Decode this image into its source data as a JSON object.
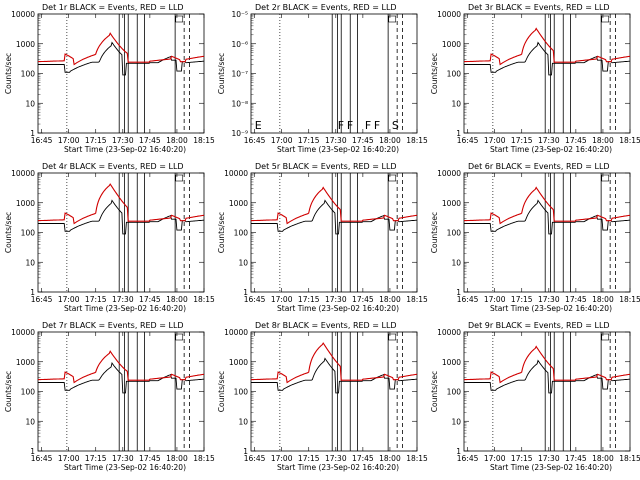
{
  "chart_data": [
    {
      "type": "line",
      "title": "Det 1r  BLACK = Events, RED = LLD",
      "xlabel": "Start Time (23-Sep-02 16:40:20)",
      "ylabel": "Counts/sec",
      "yscale": "log",
      "ylim": [
        1,
        10000
      ],
      "xlim": [
        "16:43",
        "18:15"
      ],
      "xticks": [
        "16:45",
        "17:00",
        "17:15",
        "17:30",
        "17:45",
        "18:00",
        "18:15"
      ],
      "yticks": [
        "1",
        "10",
        "100",
        "1000",
        "10000"
      ],
      "has_data": true,
      "peak_lld": 2000,
      "peak_events": 900,
      "flags": []
    },
    {
      "type": "line",
      "title": "Det 2r  BLACK = Events, RED = LLD",
      "xlabel": "Start Time (23-Sep-02 16:40:20)",
      "ylabel": "Counts/sec",
      "yscale": "log",
      "ylim": [
        1e-09,
        1e-05
      ],
      "xlim": [
        "16:43",
        "18:15"
      ],
      "xticks": [
        "16:45",
        "17:00",
        "17:15",
        "17:30",
        "17:45",
        "18:00",
        "18:15"
      ],
      "yticks": [
        "10⁻⁹",
        "10⁻⁸",
        "10⁻⁷",
        "10⁻⁶",
        "10⁻⁵"
      ],
      "has_data": false,
      "peak_lld": 0,
      "peak_events": 0,
      "flags": [
        "E",
        "F",
        "F",
        "F",
        "F",
        "S"
      ]
    },
    {
      "type": "line",
      "title": "Det 3r  BLACK = Events, RED = LLD",
      "xlabel": "Start Time (23-Sep-02 16:40:20)",
      "ylabel": "Counts/sec",
      "yscale": "log",
      "ylim": [
        1,
        10000
      ],
      "xlim": [
        "16:43",
        "18:15"
      ],
      "xticks": [
        "16:45",
        "17:00",
        "17:15",
        "17:30",
        "17:45",
        "18:00",
        "18:15"
      ],
      "yticks": [
        "1",
        "10",
        "100",
        "1000",
        "10000"
      ],
      "has_data": true,
      "peak_lld": 3000,
      "peak_events": 900,
      "flags": []
    },
    {
      "type": "line",
      "title": "Det 4r  BLACK = Events, RED = LLD",
      "xlabel": "Start Time (23-Sep-02 16:40:20)",
      "ylabel": "Counts/sec",
      "yscale": "log",
      "ylim": [
        1,
        10000
      ],
      "xlim": [
        "16:43",
        "18:15"
      ],
      "xticks": [
        "16:45",
        "17:00",
        "17:15",
        "17:30",
        "17:45",
        "18:00",
        "18:15"
      ],
      "yticks": [
        "1",
        "10",
        "100",
        "1000",
        "10000"
      ],
      "has_data": true,
      "peak_lld": 4000,
      "peak_events": 1000,
      "flags": []
    },
    {
      "type": "line",
      "title": "Det 5r  BLACK = Events, RED = LLD",
      "xlabel": "Start Time (23-Sep-02 16:40:20)",
      "ylabel": "Counts/sec",
      "yscale": "log",
      "ylim": [
        1,
        10000
      ],
      "xlim": [
        "16:43",
        "18:15"
      ],
      "xticks": [
        "16:45",
        "17:00",
        "17:15",
        "17:30",
        "17:45",
        "18:00",
        "18:15"
      ],
      "yticks": [
        "1",
        "10",
        "100",
        "1000",
        "10000"
      ],
      "has_data": true,
      "peak_lld": 3000,
      "peak_events": 1000,
      "flags": []
    },
    {
      "type": "line",
      "title": "Det 6r  BLACK = Events, RED = LLD",
      "xlabel": "Start Time (23-Sep-02 16:40:20)",
      "ylabel": "Counts/sec",
      "yscale": "log",
      "ylim": [
        1,
        10000
      ],
      "xlim": [
        "16:43",
        "18:15"
      ],
      "xticks": [
        "16:45",
        "17:00",
        "17:15",
        "17:30",
        "17:45",
        "18:00",
        "18:15"
      ],
      "yticks": [
        "1",
        "10",
        "100",
        "1000",
        "10000"
      ],
      "has_data": true,
      "peak_lld": 3000,
      "peak_events": 1000,
      "flags": []
    },
    {
      "type": "line",
      "title": "Det 7r  BLACK = Events, RED = LLD",
      "xlabel": "Start Time (23-Sep-02 16:40:20)",
      "ylabel": "Counts/sec",
      "yscale": "log",
      "ylim": [
        1,
        10000
      ],
      "xlim": [
        "16:43",
        "18:15"
      ],
      "xticks": [
        "16:45",
        "17:00",
        "17:15",
        "17:30",
        "17:45",
        "18:00",
        "18:15"
      ],
      "yticks": [
        "1",
        "10",
        "100",
        "1000",
        "10000"
      ],
      "has_data": true,
      "peak_lld": 2000,
      "peak_events": 700,
      "flags": []
    },
    {
      "type": "line",
      "title": "Det 8r  BLACK = Events, RED = LLD",
      "xlabel": "Start Time (23-Sep-02 16:40:20)",
      "ylabel": "Counts/sec",
      "yscale": "log",
      "ylim": [
        1,
        10000
      ],
      "xlim": [
        "16:43",
        "18:15"
      ],
      "xticks": [
        "16:45",
        "17:00",
        "17:15",
        "17:30",
        "17:45",
        "18:00",
        "18:15"
      ],
      "yticks": [
        "1",
        "10",
        "100",
        "1000",
        "10000"
      ],
      "has_data": true,
      "peak_lld": 4000,
      "peak_events": 1100,
      "flags": []
    },
    {
      "type": "line",
      "title": "Det 9r  BLACK = Events, RED = LLD",
      "xlabel": "Start Time (23-Sep-02 16:40:20)",
      "ylabel": "Counts/sec",
      "yscale": "log",
      "ylim": [
        1,
        10000
      ],
      "xlim": [
        "16:43",
        "18:15"
      ],
      "xticks": [
        "16:45",
        "17:00",
        "17:15",
        "17:30",
        "17:45",
        "18:00",
        "18:15"
      ],
      "yticks": [
        "1",
        "10",
        "100",
        "1000",
        "10000"
      ],
      "has_data": true,
      "peak_lld": 3000,
      "peak_events": 900,
      "flags": []
    }
  ],
  "colors": {
    "events": "#000000",
    "lld": "#d00000",
    "axes": "#000000",
    "background": "#ffffff"
  }
}
